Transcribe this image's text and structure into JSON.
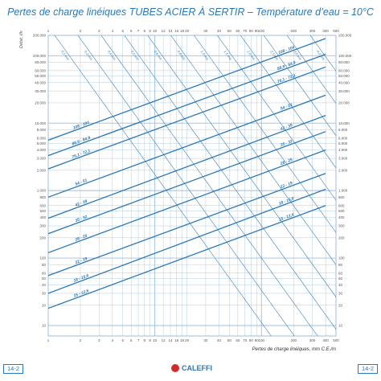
{
  "title": "Pertes de charge linéiques TUBES ACIER À SERTIR  – Température d’eau = 10°C",
  "chart_data": {
    "type": "line",
    "title": "Pertes de charge linéiques TUBES ACIER À SERTIR  – Température d’eau = 10°C",
    "xlabel": "Pertes de charge linéiques, mm C.E./m",
    "ylabel": "Débit, l/h",
    "x_scale": "log",
    "y_scale": "log",
    "xlim": [
      1,
      500
    ],
    "ylim": [
      7,
      200000
    ],
    "grid": true,
    "x_ticks": [
      1,
      2,
      3,
      4,
      5,
      6,
      7,
      8,
      9,
      10,
      12,
      14,
      16,
      18,
      20,
      30,
      40,
      50,
      60,
      70,
      80,
      90,
      100,
      200,
      300,
      400,
      500
    ],
    "x_tick_labels": [
      "1",
      "2",
      "3",
      "4",
      "5",
      "6",
      "7",
      "8",
      "9",
      "10",
      "12",
      "14",
      "16",
      "18",
      "20",
      "30",
      "40",
      "50",
      "60",
      "70",
      "80",
      "90",
      "100",
      "200",
      "300",
      "400",
      "500"
    ],
    "y_ticks": [
      10,
      20,
      30,
      40,
      50,
      60,
      80,
      100,
      200,
      300,
      400,
      500,
      600,
      800,
      1000,
      2000,
      3000,
      4000,
      5000,
      6000,
      8000,
      10000,
      20000,
      30000,
      40000,
      50000,
      60000,
      80000,
      100000,
      200000
    ],
    "y_tick_labels": [
      "10",
      "20",
      "30",
      "40",
      "50",
      "60",
      "80",
      "100",
      "200",
      "300",
      "400",
      "500",
      "600",
      "800",
      "1.000",
      "2.000",
      "3.000",
      "4.000",
      "5.000",
      "6.000",
      "8.000",
      "10.000",
      "20.000",
      "30.000",
      "40.000",
      "50.000",
      "60.000",
      "80.000",
      "100.000",
      "200.000"
    ],
    "series": [
      {
        "name": "15 - 12,6",
        "x": [
          1,
          400
        ],
        "y": [
          18,
          600
        ]
      },
      {
        "name": "18 - 15,6",
        "x": [
          1,
          400
        ],
        "y": [
          30,
          1050
        ]
      },
      {
        "name": "22 - 19",
        "x": [
          1,
          400
        ],
        "y": [
          55,
          1800
        ]
      },
      {
        "name": "28 - 25",
        "x": [
          1,
          400
        ],
        "y": [
          120,
          4000
        ]
      },
      {
        "name": "35 - 32",
        "x": [
          1,
          400
        ],
        "y": [
          230,
          7500
        ]
      },
      {
        "name": "42 - 39",
        "x": [
          1,
          400
        ],
        "y": [
          390,
          13000
        ]
      },
      {
        "name": "54 - 51",
        "x": [
          1,
          400
        ],
        "y": [
          800,
          26000
        ]
      },
      {
        "name": "76,1 - 72,1",
        "x": [
          1,
          400
        ],
        "y": [
          2100,
          68000
        ]
      },
      {
        "name": "88,9 - 84,9",
        "x": [
          1,
          400
        ],
        "y": [
          3300,
          105000
        ]
      },
      {
        "name": "108 - 104",
        "x": [
          1,
          400
        ],
        "y": [
          5600,
          180000
        ]
      }
    ],
    "velocity_lines": [
      {
        "label": "0,2 m/s"
      },
      {
        "label": "0,3 m/s"
      },
      {
        "label": "0,4 m/s"
      },
      {
        "label": "0,5 m/s"
      },
      {
        "label": "0,6 m/s"
      },
      {
        "label": "0,8 m/s"
      },
      {
        "label": "1,0 m/s"
      },
      {
        "label": "1,5 m/s"
      },
      {
        "label": "2,0 m/s"
      },
      {
        "label": "2,5 m/s"
      },
      {
        "label": "3,0 m/s"
      },
      {
        "label": "4,0 m/s"
      }
    ]
  },
  "footer": {
    "page_left": "14-2",
    "page_right": "14-2",
    "brand": "CALEFFI"
  },
  "colors": {
    "line": "#2a78b7",
    "grid": "#9dbfde",
    "text": "#2a78b7",
    "brand_red": "#d12b2b"
  }
}
